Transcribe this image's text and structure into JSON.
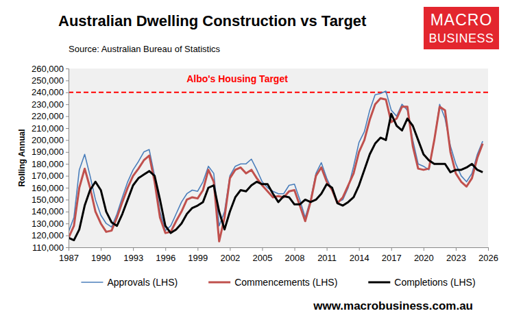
{
  "chart_data": {
    "type": "line",
    "title": "Australian Dwelling Construction vs Target",
    "subtitle": "Source: Australian Bureau of Statistics",
    "y_label": "Rolling Annual",
    "logo": [
      "MACRO",
      "BUSINESS"
    ],
    "website": "www.macrobusiness.com.au",
    "x": [
      1987,
      1987.5,
      1988,
      1988.5,
      1989,
      1989.5,
      1990,
      1990.5,
      1991,
      1991.5,
      1992,
      1992.5,
      1993,
      1993.5,
      1994,
      1994.5,
      1995,
      1995.5,
      1996,
      1996.5,
      1997,
      1997.5,
      1998,
      1998.5,
      1999,
      1999.5,
      2000,
      2000.5,
      2001,
      2001.5,
      2002,
      2002.5,
      2003,
      2003.5,
      2004,
      2004.5,
      2005,
      2005.5,
      2006,
      2006.5,
      2007,
      2007.5,
      2008,
      2008.5,
      2009,
      2009.5,
      2010,
      2010.5,
      2011,
      2011.5,
      2012,
      2012.5,
      2013,
      2013.5,
      2014,
      2014.5,
      2015,
      2015.5,
      2016,
      2016.5,
      2017,
      2017.5,
      2018,
      2018.5,
      2019,
      2019.5,
      2020,
      2020.5,
      2021,
      2021.5,
      2022,
      2022.5,
      2023,
      2023.5,
      2024,
      2024.5,
      2025,
      2025.5
    ],
    "series": [
      {
        "name": "Approvals (LHS)",
        "color": "#4a7ebb",
        "line_style": "solid",
        "values": [
          123000,
          135000,
          175000,
          188000,
          170000,
          150000,
          137000,
          130000,
          127000,
          138000,
          152000,
          165000,
          175000,
          182000,
          190000,
          192000,
          170000,
          140000,
          124000,
          128000,
          138000,
          148000,
          155000,
          158000,
          157000,
          165000,
          178000,
          172000,
          128000,
          140000,
          170000,
          178000,
          180000,
          180000,
          184000,
          175000,
          165000,
          160000,
          157000,
          155000,
          155000,
          162000,
          163000,
          150000,
          135000,
          150000,
          172000,
          181000,
          168000,
          158000,
          148000,
          150000,
          160000,
          178000,
          198000,
          207000,
          225000,
          238000,
          239000,
          241000,
          225000,
          220000,
          230000,
          225000,
          200000,
          180000,
          178000,
          175000,
          200000,
          230000,
          218000,
          195000,
          180000,
          170000,
          165000,
          172000,
          188000,
          199000
        ]
      },
      {
        "name": "Commencements (LHS)",
        "color": "#c0504d",
        "line_style": "solid",
        "values": [
          118000,
          128000,
          160000,
          176000,
          160000,
          140000,
          130000,
          123000,
          124000,
          135000,
          148000,
          160000,
          170000,
          176000,
          183000,
          187000,
          165000,
          135000,
          122000,
          123000,
          132000,
          140000,
          150000,
          152000,
          151000,
          158000,
          175000,
          165000,
          115000,
          135000,
          168000,
          175000,
          177000,
          172000,
          175000,
          168000,
          162000,
          157000,
          152000,
          153000,
          152000,
          157000,
          158000,
          145000,
          132000,
          148000,
          170000,
          177000,
          165000,
          158000,
          147000,
          152000,
          162000,
          172000,
          190000,
          200000,
          217000,
          230000,
          235000,
          234000,
          215000,
          218000,
          228000,
          228000,
          195000,
          176000,
          175000,
          176000,
          200000,
          228000,
          225000,
          190000,
          172000,
          165000,
          161000,
          168000,
          185000,
          197000
        ]
      },
      {
        "name": "Completions (LHS)",
        "color": "#000000",
        "line_style": "solid",
        "values": [
          118000,
          116000,
          125000,
          145000,
          158000,
          165000,
          158000,
          140000,
          131000,
          128000,
          138000,
          150000,
          162000,
          168000,
          171000,
          174000,
          170000,
          150000,
          128000,
          122000,
          125000,
          130000,
          138000,
          143000,
          145000,
          148000,
          160000,
          162000,
          140000,
          125000,
          140000,
          152000,
          158000,
          157000,
          162000,
          165000,
          163000,
          163000,
          155000,
          148000,
          153000,
          152000,
          146000,
          146000,
          150000,
          148000,
          150000,
          155000,
          163000,
          160000,
          147000,
          145000,
          148000,
          152000,
          162000,
          175000,
          188000,
          197000,
          202000,
          200000,
          222000,
          212000,
          208000,
          218000,
          212000,
          200000,
          188000,
          183000,
          180000,
          180000,
          180000,
          173000,
          175000,
          175000,
          177000,
          180000,
          175000,
          173000
        ]
      }
    ],
    "annotations": [
      {
        "text": "Albo's Housing Target",
        "y": 240000,
        "color": "#ff0000",
        "line_style": "dashed"
      }
    ],
    "xlim": [
      1987,
      2026
    ],
    "xticks": [
      1987,
      1990,
      1993,
      1996,
      1999,
      2002,
      2005,
      2008,
      2011,
      2014,
      2017,
      2020,
      2023,
      2026
    ],
    "ylim": [
      110000,
      260000
    ],
    "yticks": [
      {
        "value": 110000,
        "label": "110,000"
      },
      {
        "value": 120000,
        "label": "120,000"
      },
      {
        "value": 130000,
        "label": "130,000"
      },
      {
        "value": 140000,
        "label": "140,000"
      },
      {
        "value": 150000,
        "label": "150,000"
      },
      {
        "value": 160000,
        "label": "160,000"
      },
      {
        "value": 170000,
        "label": "170,000"
      },
      {
        "value": 180000,
        "label": "180,000"
      },
      {
        "value": 190000,
        "label": "190,000"
      },
      {
        "value": 200000,
        "label": "200,000"
      },
      {
        "value": 210000,
        "label": "210,000"
      },
      {
        "value": 220000,
        "label": "220,000"
      },
      {
        "value": 230000,
        "label": "230,000"
      },
      {
        "value": 240000,
        "label": "240,000"
      },
      {
        "value": 250000,
        "label": "250,000"
      },
      {
        "value": 260000,
        "label": "260,000"
      }
    ],
    "grid": false,
    "legend": "bottom"
  }
}
